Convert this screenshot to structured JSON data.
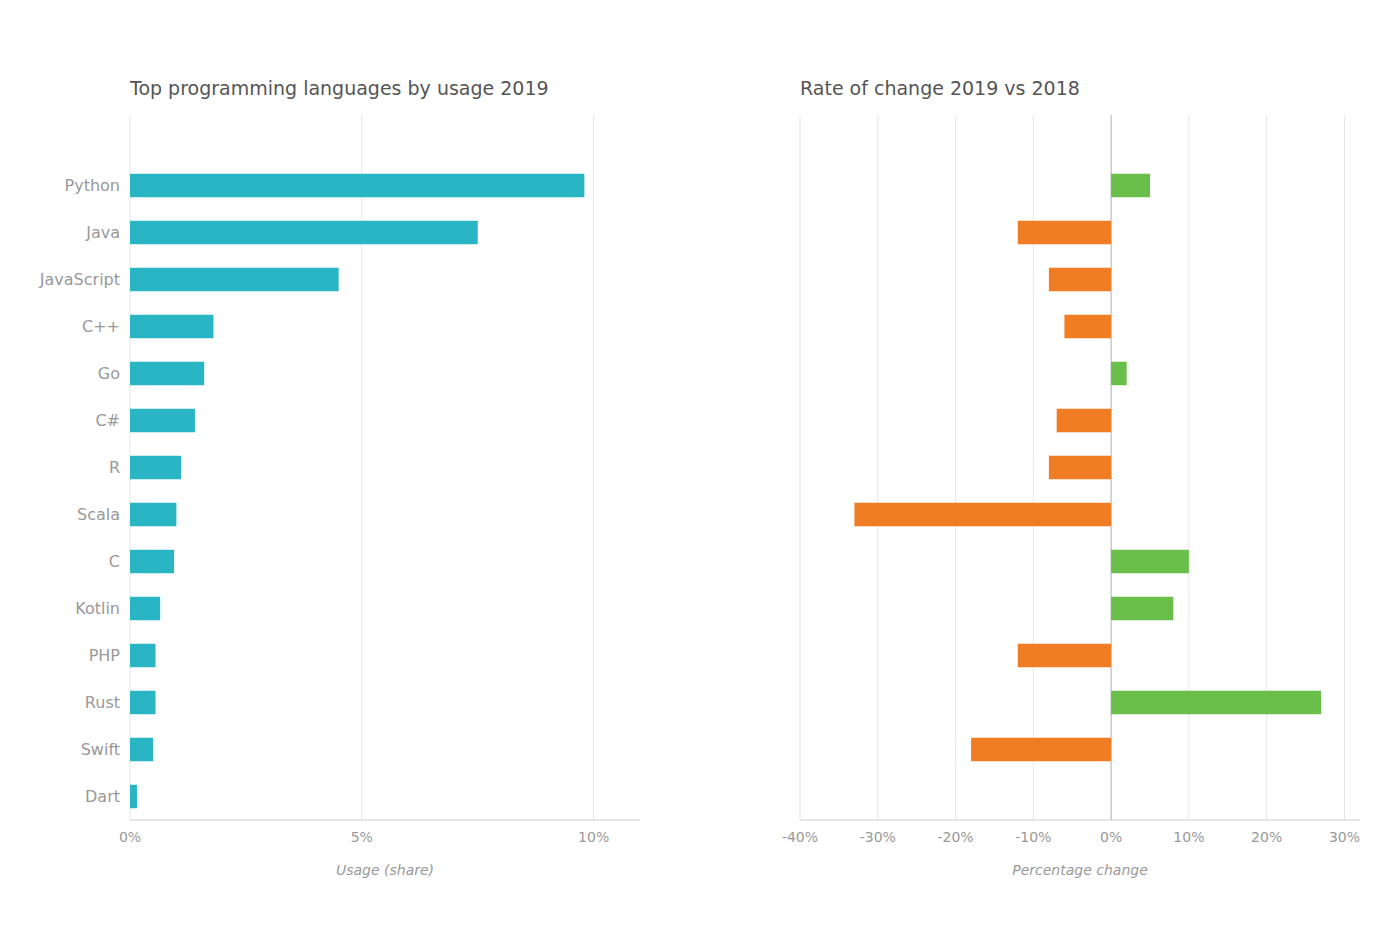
{
  "chart_data": [
    {
      "type": "bar",
      "orientation": "horizontal",
      "title": "Top programming languages by usage 2019",
      "xlabel": "Usage (share)",
      "categories": [
        "Python",
        "Java",
        "JavaScript",
        "C++",
        "Go",
        "C#",
        "R",
        "Scala",
        "C",
        "Kotlin",
        "PHP",
        "Rust",
        "Swift",
        "Dart"
      ],
      "values": [
        9.8,
        7.5,
        4.5,
        1.8,
        1.6,
        1.4,
        1.1,
        1.0,
        0.95,
        0.65,
        0.55,
        0.55,
        0.5,
        0.15
      ],
      "color": "#29b5c3",
      "xlim": [
        0,
        11
      ],
      "xticks": [
        {
          "value": 0,
          "label": "0%"
        },
        {
          "value": 5,
          "label": "5%"
        },
        {
          "value": 10,
          "label": "10%"
        }
      ],
      "grid": true
    },
    {
      "type": "bar",
      "orientation": "horizontal",
      "title": "Rate of change 2019 vs 2018",
      "xlabel": "Percentage change",
      "categories": [
        null,
        null,
        null,
        null,
        null,
        null,
        null,
        null,
        null,
        null,
        null,
        null,
        null,
        null
      ],
      "values": [
        5.0,
        -12.0,
        -8.0,
        -6.0,
        2.0,
        -7.0,
        -8.0,
        -33.0,
        10.0,
        8.0,
        -12.0,
        27.0,
        -18.0,
        0.0
      ],
      "colors": [
        "#6abf4b",
        "#f07c23",
        "#f07c23",
        "#f07c23",
        "#6abf4b",
        "#f07c23",
        "#f07c23",
        "#f07c23",
        "#6abf4b",
        "#6abf4b",
        "#f07c23",
        "#6abf4b",
        "#f07c23",
        "#f07c23"
      ],
      "xlim": [
        -40,
        32
      ],
      "xticks": [
        {
          "value": -40,
          "label": "-40%"
        },
        {
          "value": -30,
          "label": "-30%"
        },
        {
          "value": -20,
          "label": "-20%"
        },
        {
          "value": -10,
          "label": "-10%"
        },
        {
          "value": 0,
          "label": "0%"
        },
        {
          "value": 10,
          "label": "10%"
        },
        {
          "value": 20,
          "label": "20%"
        },
        {
          "value": 30,
          "label": "30%"
        }
      ],
      "tick_labels": "x",
      "grid": true
    }
  ]
}
